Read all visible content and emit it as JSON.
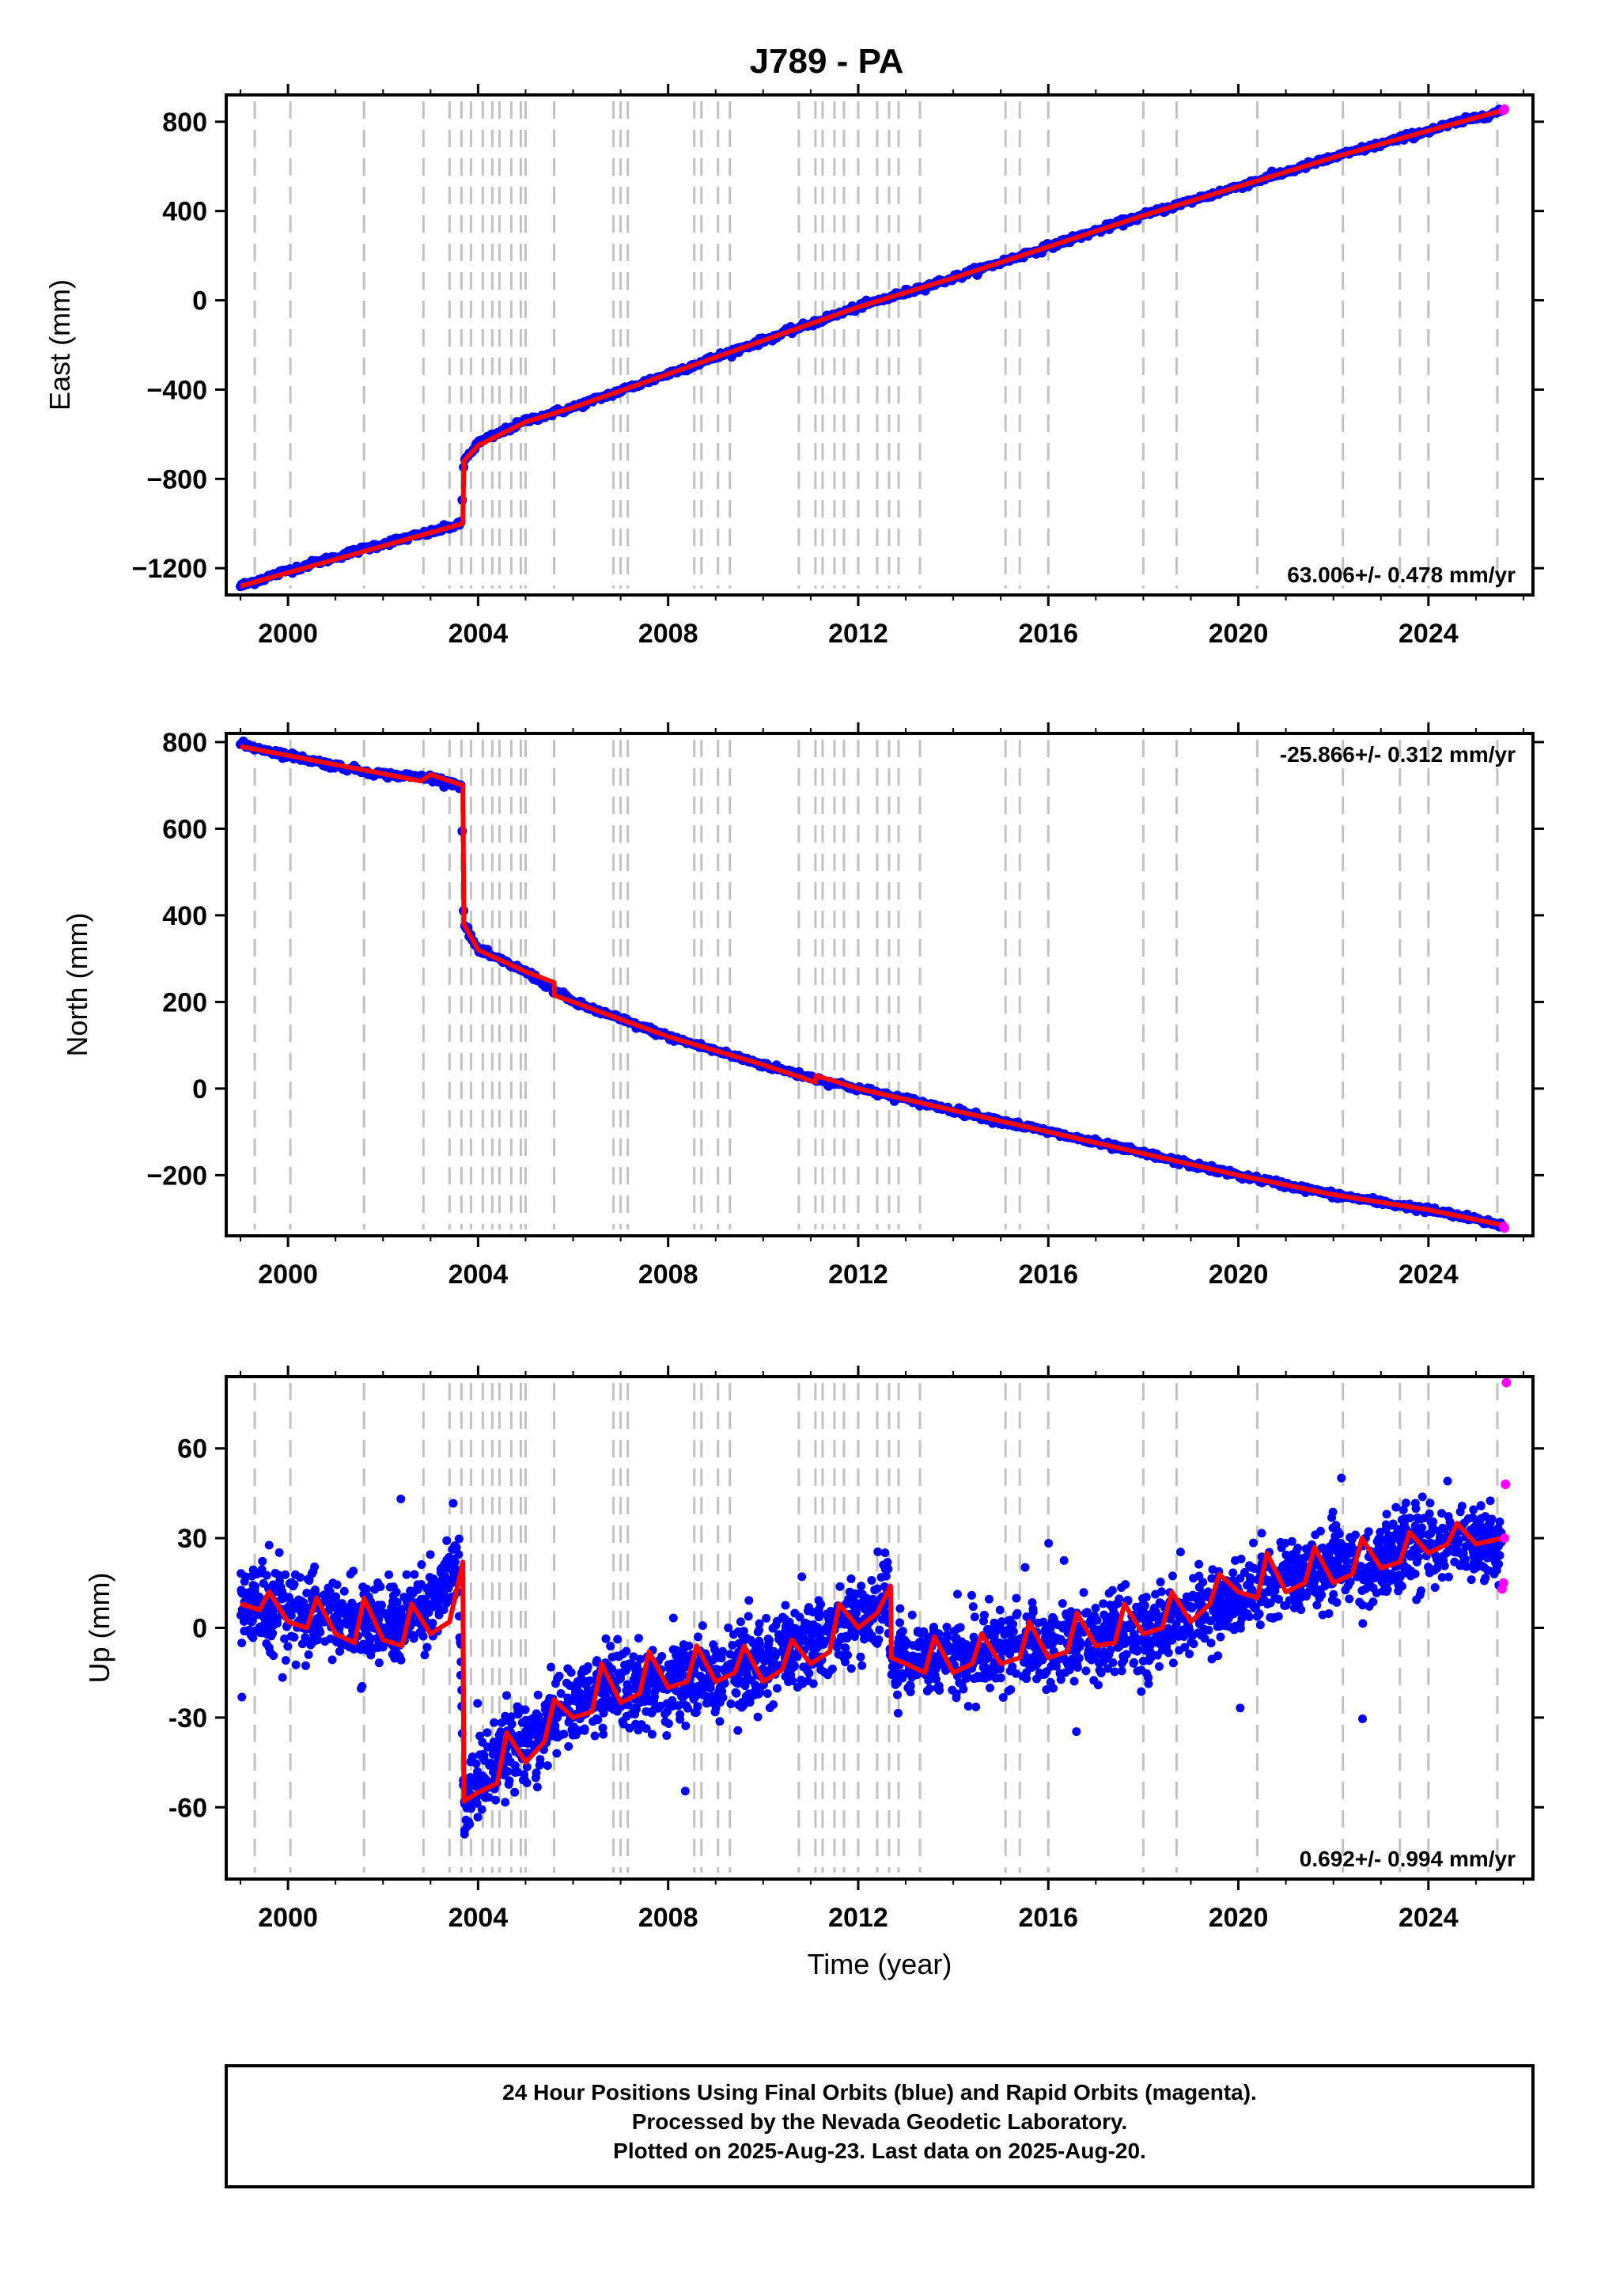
{
  "chart_data": [
    {
      "type": "scatter",
      "title": "J789 - PA",
      "xlabel": "",
      "ylabel": "East (mm)",
      "xlim": [
        1998.7,
        2026.2
      ],
      "ylim": [
        -1320,
        920
      ],
      "xticks": [
        2000,
        2004,
        2008,
        2012,
        2016,
        2020,
        2024
      ],
      "yticks": [
        -1200,
        -800,
        -400,
        0,
        400,
        800
      ],
      "yticks_labels": [
        "−1200",
        "−800",
        "−400",
        "0",
        "400",
        "800"
      ],
      "rate_label": "63.006+/- 0.478 mm/yr",
      "rate_position": "bottom-right",
      "series": [
        {
          "name": "",
          "color": "#0000ff",
          "kind": "points",
          "x": [
            1999.0,
            2000.0,
            2001.0,
            2002.0,
            2003.0,
            2003.65,
            2003.7,
            2004.0,
            2005.0,
            2006.0,
            2008.0,
            2010.0,
            2012.0,
            2014.0,
            2016.0,
            2018.0,
            2020.0,
            2022.0,
            2024.0,
            2025.55
          ],
          "y": [
            -1280,
            -1210,
            -1150,
            -1090,
            -1040,
            -1000,
            -720,
            -640,
            -540,
            -480,
            -330,
            -180,
            -30,
            100,
            240,
            380,
            510,
            640,
            760,
            850
          ]
        },
        {
          "name": "",
          "color": "#ff0000",
          "kind": "line",
          "x": [
            1999.0,
            2003.68,
            2003.7,
            2004.0,
            2005.0,
            2006.0,
            2008.0,
            2010.0,
            2012.0,
            2014.0,
            2016.0,
            2018.0,
            2020.0,
            2022.0,
            2024.0,
            2025.55
          ],
          "y": [
            -1280,
            -1000,
            -720,
            -650,
            -545,
            -480,
            -330,
            -180,
            -30,
            100,
            240,
            380,
            510,
            640,
            760,
            850
          ]
        },
        {
          "name": "",
          "color": "#ff00ff",
          "kind": "points",
          "x": [
            2025.58,
            2025.6
          ],
          "y": [
            851,
            856
          ]
        }
      ]
    },
    {
      "type": "scatter",
      "title": "",
      "xlabel": "",
      "ylabel": "North (mm)",
      "xlim": [
        1998.7,
        2026.2
      ],
      "ylim": [
        -340,
        820
      ],
      "xticks": [
        2000,
        2004,
        2008,
        2012,
        2016,
        2020,
        2024
      ],
      "yticks": [
        -200,
        0,
        200,
        400,
        600,
        800
      ],
      "yticks_labels": [
        "−200",
        "0",
        "200",
        "400",
        "600",
        "800"
      ],
      "rate_label": "-25.866+/- 0.312 mm/yr",
      "rate_position": "top-right",
      "series": [
        {
          "name": "",
          "color": "#0000ff",
          "kind": "points",
          "x": [
            1999.0,
            2000.0,
            2001.0,
            2002.0,
            2003.0,
            2003.65,
            2003.7,
            2004.0,
            2005.0,
            2006.0,
            2008.0,
            2010.0,
            2011.2,
            2012.0,
            2014.0,
            2016.0,
            2018.0,
            2020.0,
            2022.0,
            2024.0,
            2025.55
          ],
          "y": [
            795,
            770,
            745,
            725,
            718,
            700,
            380,
            320,
            270,
            200,
            120,
            55,
            20,
            0,
            -50,
            -100,
            -150,
            -200,
            -245,
            -280,
            -315
          ]
        },
        {
          "name": "",
          "color": "#ff0000",
          "kind": "line",
          "x": [
            1999.0,
            2002.8,
            2003.0,
            2003.68,
            2003.7,
            2004.0,
            2005.0,
            2005.6,
            2005.61,
            2006.0,
            2008.0,
            2010.0,
            2011.1,
            2011.11,
            2012.0,
            2014.0,
            2016.0,
            2018.0,
            2020.0,
            2022.0,
            2024.0,
            2025.55
          ],
          "y": [
            790,
            710,
            725,
            700,
            380,
            320,
            270,
            245,
            215,
            200,
            120,
            55,
            15,
            30,
            0,
            -50,
            -100,
            -150,
            -200,
            -245,
            -280,
            -315
          ]
        },
        {
          "name": "",
          "color": "#ff00ff",
          "kind": "points",
          "x": [
            2025.58,
            2025.6
          ],
          "y": [
            -318,
            -322
          ]
        }
      ]
    },
    {
      "type": "scatter",
      "title": "",
      "xlabel": "Time (year)",
      "ylabel": "Up (mm)",
      "xlim": [
        1998.7,
        2026.2
      ],
      "ylim": [
        -84,
        84
      ],
      "xticks": [
        2000,
        2004,
        2008,
        2012,
        2016,
        2020,
        2024
      ],
      "yticks": [
        -60,
        -30,
        0,
        30,
        60
      ],
      "yticks_labels": [
        "-60",
        "-30",
        "0",
        "30",
        "60"
      ],
      "rate_label": "0.692+/- 0.994 mm/yr",
      "rate_position": "bottom-right",
      "series": [
        {
          "name": "",
          "color": "#0000ff",
          "kind": "points-cloud",
          "x": [
            1999.0,
            2000.0,
            2001.0,
            2002.0,
            2003.0,
            2003.6,
            2003.7,
            2004.0,
            2004.5,
            2005.0,
            2006.0,
            2007.0,
            2008.0,
            2009.0,
            2010.0,
            2011.0,
            2012.0,
            2012.6,
            2012.7,
            2014.0,
            2016.0,
            2018.0,
            2019.0,
            2020.0,
            2021.0,
            2022.0,
            2023.0,
            2024.0,
            2025.55
          ],
          "y": [
            8,
            5,
            3,
            2,
            6,
            20,
            -58,
            -50,
            -40,
            -38,
            -25,
            -20,
            -18,
            -15,
            -12,
            -5,
            3,
            12,
            -12,
            -10,
            -5,
            -2,
            5,
            10,
            17,
            20,
            23,
            27,
            28
          ],
          "spread": 12
        },
        {
          "name": "",
          "color": "#ff0000",
          "kind": "line",
          "x": [
            1999.0,
            1999.4,
            1999.6,
            2000.0,
            2000.4,
            2000.6,
            2001.0,
            2001.4,
            2001.6,
            2002.0,
            2002.4,
            2002.6,
            2003.0,
            2003.4,
            2003.68,
            2003.7,
            2004.0,
            2004.4,
            2004.6,
            2005.0,
            2005.4,
            2005.6,
            2006.0,
            2006.4,
            2006.6,
            2007.0,
            2007.4,
            2007.6,
            2008.0,
            2008.4,
            2008.6,
            2009.0,
            2009.4,
            2009.6,
            2010.0,
            2010.4,
            2010.6,
            2011.0,
            2011.4,
            2011.6,
            2012.0,
            2012.4,
            2012.68,
            2012.7,
            2013.0,
            2013.4,
            2013.6,
            2014.0,
            2014.4,
            2014.6,
            2015.0,
            2015.4,
            2015.6,
            2016.0,
            2016.4,
            2016.6,
            2017.0,
            2017.4,
            2017.6,
            2018.0,
            2018.4,
            2018.6,
            2019.0,
            2019.4,
            2019.6,
            2020.0,
            2020.4,
            2020.6,
            2021.0,
            2021.4,
            2021.6,
            2022.0,
            2022.4,
            2022.6,
            2023.0,
            2023.4,
            2023.6,
            2024.0,
            2024.4,
            2024.6,
            2025.0,
            2025.55
          ],
          "y": [
            8,
            6,
            12,
            2,
            0,
            10,
            -2,
            -5,
            10,
            -4,
            -6,
            8,
            -2,
            2,
            22,
            -58,
            -55,
            -52,
            -35,
            -45,
            -38,
            -24,
            -30,
            -28,
            -12,
            -25,
            -22,
            -8,
            -20,
            -18,
            -6,
            -18,
            -15,
            -6,
            -18,
            -14,
            -4,
            -12,
            -8,
            8,
            0,
            5,
            14,
            -10,
            -12,
            -15,
            -3,
            -15,
            -12,
            -2,
            -12,
            -10,
            2,
            -10,
            -8,
            5,
            -6,
            -5,
            8,
            -2,
            0,
            12,
            2,
            8,
            18,
            12,
            10,
            25,
            12,
            15,
            27,
            15,
            18,
            30,
            20,
            22,
            32,
            25,
            28,
            35,
            28,
            30
          ]
        },
        {
          "name": "",
          "color": "#ff00ff",
          "kind": "points",
          "x": [
            2025.55,
            2025.58,
            2025.6,
            2025.62,
            2025.64
          ],
          "y": [
            13,
            15,
            30,
            48,
            82
          ]
        }
      ]
    }
  ],
  "event_years": [
    1999.3,
    2000.05,
    2001.6,
    2002.85,
    2003.4,
    2003.65,
    2003.85,
    2004.1,
    2004.3,
    2004.45,
    2004.7,
    2004.9,
    2005.0,
    2005.6,
    2006.85,
    2007.0,
    2007.15,
    2008.55,
    2008.7,
    2009.05,
    2009.3,
    2010.75,
    2011.1,
    2011.25,
    2011.5,
    2011.7,
    2012.0,
    2012.4,
    2012.65,
    2012.85,
    2013.3,
    2015.1,
    2015.4,
    2016.0,
    2018.0,
    2018.7,
    2020.4,
    2022.2,
    2023.4,
    2024.0,
    2025.45
  ],
  "footer": {
    "line1": "24 Hour Positions Using Final Orbits (blue) and Rapid Orbits (magenta).",
    "line2": "Processed by the Nevada Geodetic Laboratory.",
    "line3": "Plotted on 2025-Aug-23. Last data on 2025-Aug-20."
  }
}
